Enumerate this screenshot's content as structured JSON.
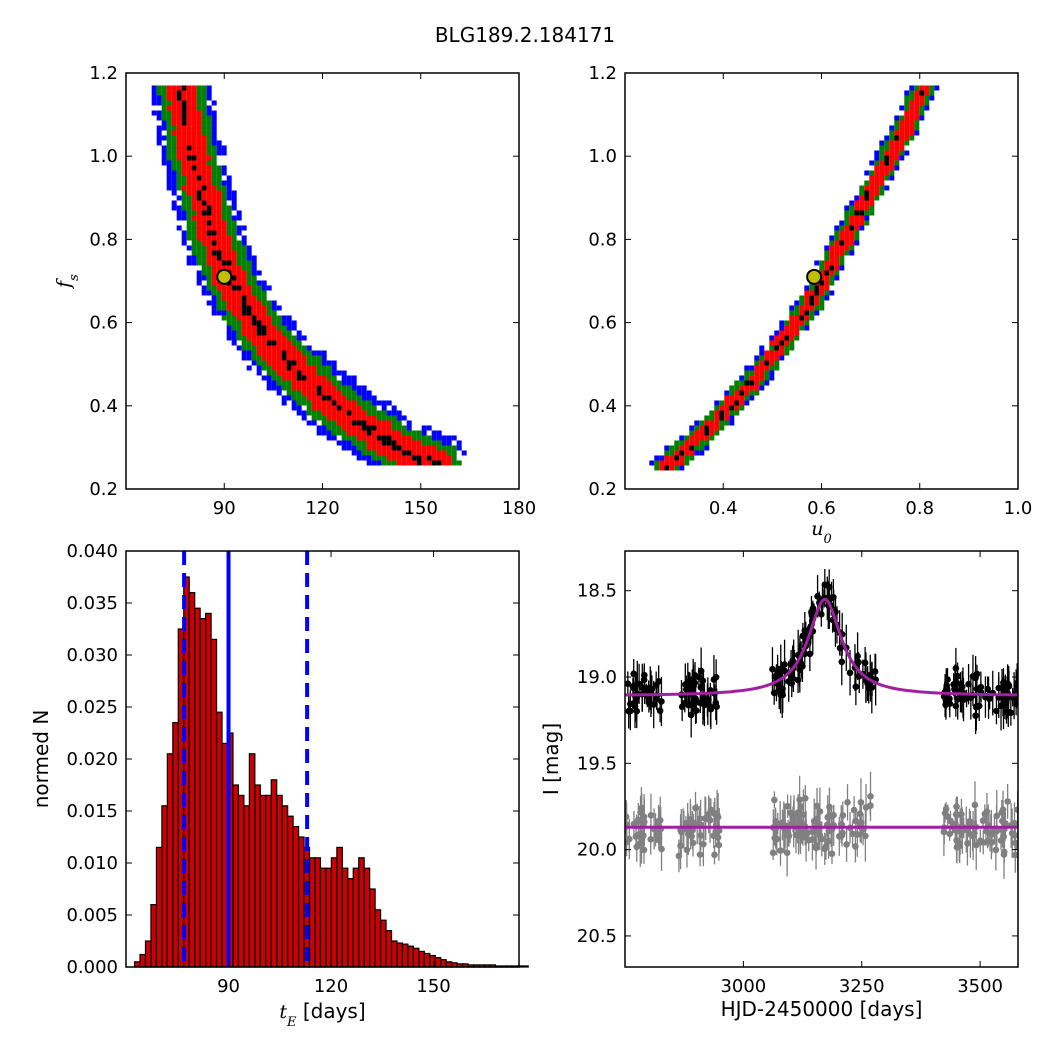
{
  "title": "BLG189.2.184171",
  "colors": {
    "level1": "#ff0000",
    "level2": "#008000",
    "level3": "#0000ff",
    "peak": "#000000",
    "best_fit": "#bfbf00",
    "model": "#a020a0",
    "hist": "#cc0000",
    "stats_line": "#0000ff",
    "data_top": "#000000",
    "data_bottom": "#808080"
  },
  "chart_data": [
    {
      "id": "tE-fs",
      "type": "heatmap",
      "xlabel": "",
      "ylabel": "f_s",
      "xlim": [
        60,
        180
      ],
      "ylim": [
        0.2,
        1.2
      ],
      "xticks": [
        "90",
        "120",
        "150",
        "180"
      ],
      "xtick_values": [
        90,
        120,
        150,
        180
      ],
      "yticks": [
        "0.2",
        "0.4",
        "0.6",
        "0.8",
        "1.0",
        "1.2"
      ],
      "ytick_values": [
        0.2,
        0.4,
        0.6,
        0.8,
        1.0,
        1.2
      ],
      "best_fit": {
        "x": 90,
        "y": 0.71
      },
      "ridge_points": [
        [
          77,
          1.17
        ],
        [
          79,
          1.05
        ],
        [
          82,
          0.95
        ],
        [
          85,
          0.86
        ],
        [
          88,
          0.78
        ],
        [
          92,
          0.7
        ],
        [
          97,
          0.63
        ],
        [
          103,
          0.56
        ],
        [
          110,
          0.5
        ],
        [
          117,
          0.45
        ],
        [
          124,
          0.4
        ],
        [
          131,
          0.36
        ],
        [
          139,
          0.32
        ],
        [
          147,
          0.28
        ],
        [
          155,
          0.26
        ]
      ],
      "band_widths": {
        "peak": 1.2,
        "level1": 4.5,
        "level2": 7,
        "level3": 9.5
      }
    },
    {
      "id": "u0-fs",
      "type": "heatmap",
      "xlabel": "u_0",
      "ylabel": "",
      "xlim": [
        0.2,
        1.0
      ],
      "ylim": [
        0.2,
        1.2
      ],
      "xticks": [
        "0.4",
        "0.6",
        "0.8",
        "1.0"
      ],
      "xtick_values": [
        0.4,
        0.6,
        0.8,
        1.0
      ],
      "yticks": [
        "0.2",
        "0.4",
        "0.6",
        "0.8",
        "1.0",
        "1.2"
      ],
      "ytick_values": [
        0.2,
        0.4,
        0.6,
        0.8,
        1.0,
        1.2
      ],
      "best_fit": {
        "x": 0.585,
        "y": 0.71
      },
      "ridge_points": [
        [
          0.28,
          0.25
        ],
        [
          0.33,
          0.3
        ],
        [
          0.4,
          0.38
        ],
        [
          0.46,
          0.46
        ],
        [
          0.52,
          0.55
        ],
        [
          0.58,
          0.65
        ],
        [
          0.63,
          0.76
        ],
        [
          0.68,
          0.87
        ],
        [
          0.73,
          0.98
        ],
        [
          0.78,
          1.09
        ],
        [
          0.81,
          1.17
        ]
      ],
      "band_widths": {
        "peak": 0.003,
        "level1": 0.014,
        "level2": 0.021,
        "level3": 0.026
      }
    },
    {
      "id": "tE-hist",
      "type": "bar",
      "xlabel": "t_E [days]",
      "ylabel": "normed N",
      "xlim": [
        60,
        175
      ],
      "ylim": [
        0.0,
        0.04
      ],
      "xticks": [
        "90",
        "120",
        "150"
      ],
      "xtick_values": [
        90,
        120,
        150
      ],
      "yticks": [
        "0.000",
        "0.005",
        "0.010",
        "0.015",
        "0.020",
        "0.025",
        "0.030",
        "0.035",
        "0.040"
      ],
      "ytick_values": [
        0.0,
        0.005,
        0.01,
        0.015,
        0.02,
        0.025,
        0.03,
        0.035,
        0.04
      ],
      "bin_start": 62.5,
      "bin_width": 1.6,
      "values": [
        0.0005,
        0.0012,
        0.0025,
        0.006,
        0.0115,
        0.0155,
        0.0205,
        0.0235,
        0.0325,
        0.0375,
        0.036,
        0.0345,
        0.0335,
        0.034,
        0.0315,
        0.0245,
        0.0215,
        0.0225,
        0.0175,
        0.0165,
        0.0155,
        0.0205,
        0.0175,
        0.0165,
        0.0165,
        0.018,
        0.0165,
        0.0155,
        0.0145,
        0.0135,
        0.0125,
        0.0115,
        0.0105,
        0.0105,
        0.0095,
        0.0095,
        0.0105,
        0.0115,
        0.0095,
        0.0085,
        0.0095,
        0.0105,
        0.0095,
        0.0075,
        0.0055,
        0.0045,
        0.0035,
        0.0025,
        0.0023,
        0.0022,
        0.002,
        0.0018,
        0.0015,
        0.0013,
        0.0011,
        0.0009,
        0.0007,
        0.0005,
        0.0004,
        0.0003,
        0.0003,
        0.0002,
        0.0002,
        0.0002,
        0.0002,
        0.0002,
        0.0001,
        0.0001,
        0.0001,
        0.0001,
        0.0001,
        0.0001
      ],
      "median": 90,
      "lower": 77,
      "upper": 113
    },
    {
      "id": "lightcurve",
      "type": "scatter",
      "xlabel": "HJD-2450000 [days]",
      "ylabel": "I [mag]",
      "xlim": [
        2750,
        3580
      ],
      "ylim": [
        20.68,
        18.27
      ],
      "xticks": [
        "3000",
        "3250",
        "3500"
      ],
      "xtick_values": [
        3000,
        3250,
        3500
      ],
      "yticks": [
        "18.5",
        "19.0",
        "19.5",
        "20.0",
        "20.5"
      ],
      "ytick_values": [
        18.5,
        19.0,
        19.5,
        20.0,
        20.5
      ],
      "series": [
        {
          "color": "black",
          "baseline": 19.11,
          "amplitude": 0.56,
          "t0": 3172,
          "tau": 95,
          "scatter": 0.09
        },
        {
          "color": "gray",
          "baseline": 19.87,
          "amplitude": 0.0,
          "t0": 3172,
          "tau": 95,
          "scatter": 0.11
        }
      ],
      "observing_seasons": [
        [
          2750,
          2830
        ],
        [
          2860,
          2950
        ],
        [
          3060,
          3280
        ],
        [
          3420,
          3580
        ]
      ]
    }
  ]
}
